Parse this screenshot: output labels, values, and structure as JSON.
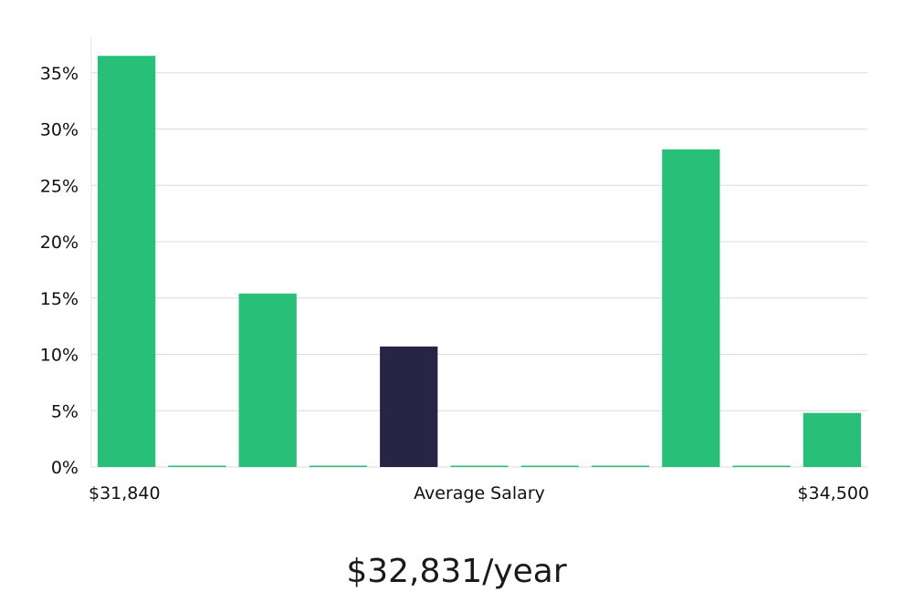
{
  "chart_data": {
    "type": "bar",
    "xlabel": "Average Salary",
    "x_min_label": "$31,840",
    "x_max_label": "$34,500",
    "ylim": [
      0,
      38
    ],
    "yticks": [
      0,
      5,
      10,
      15,
      20,
      25,
      30,
      35
    ],
    "ytick_labels": [
      "0%",
      "5%",
      "10%",
      "15%",
      "20%",
      "25%",
      "30%",
      "35%"
    ],
    "grid": true,
    "bin_count": 11,
    "values": [
      36.5,
      0,
      15.4,
      0,
      10.7,
      0,
      0,
      0,
      28.2,
      0,
      4.8
    ],
    "highlight_index": 4,
    "bar_color": "#28bf78",
    "highlight_color": "#272445"
  },
  "caption": "$32,831/year"
}
